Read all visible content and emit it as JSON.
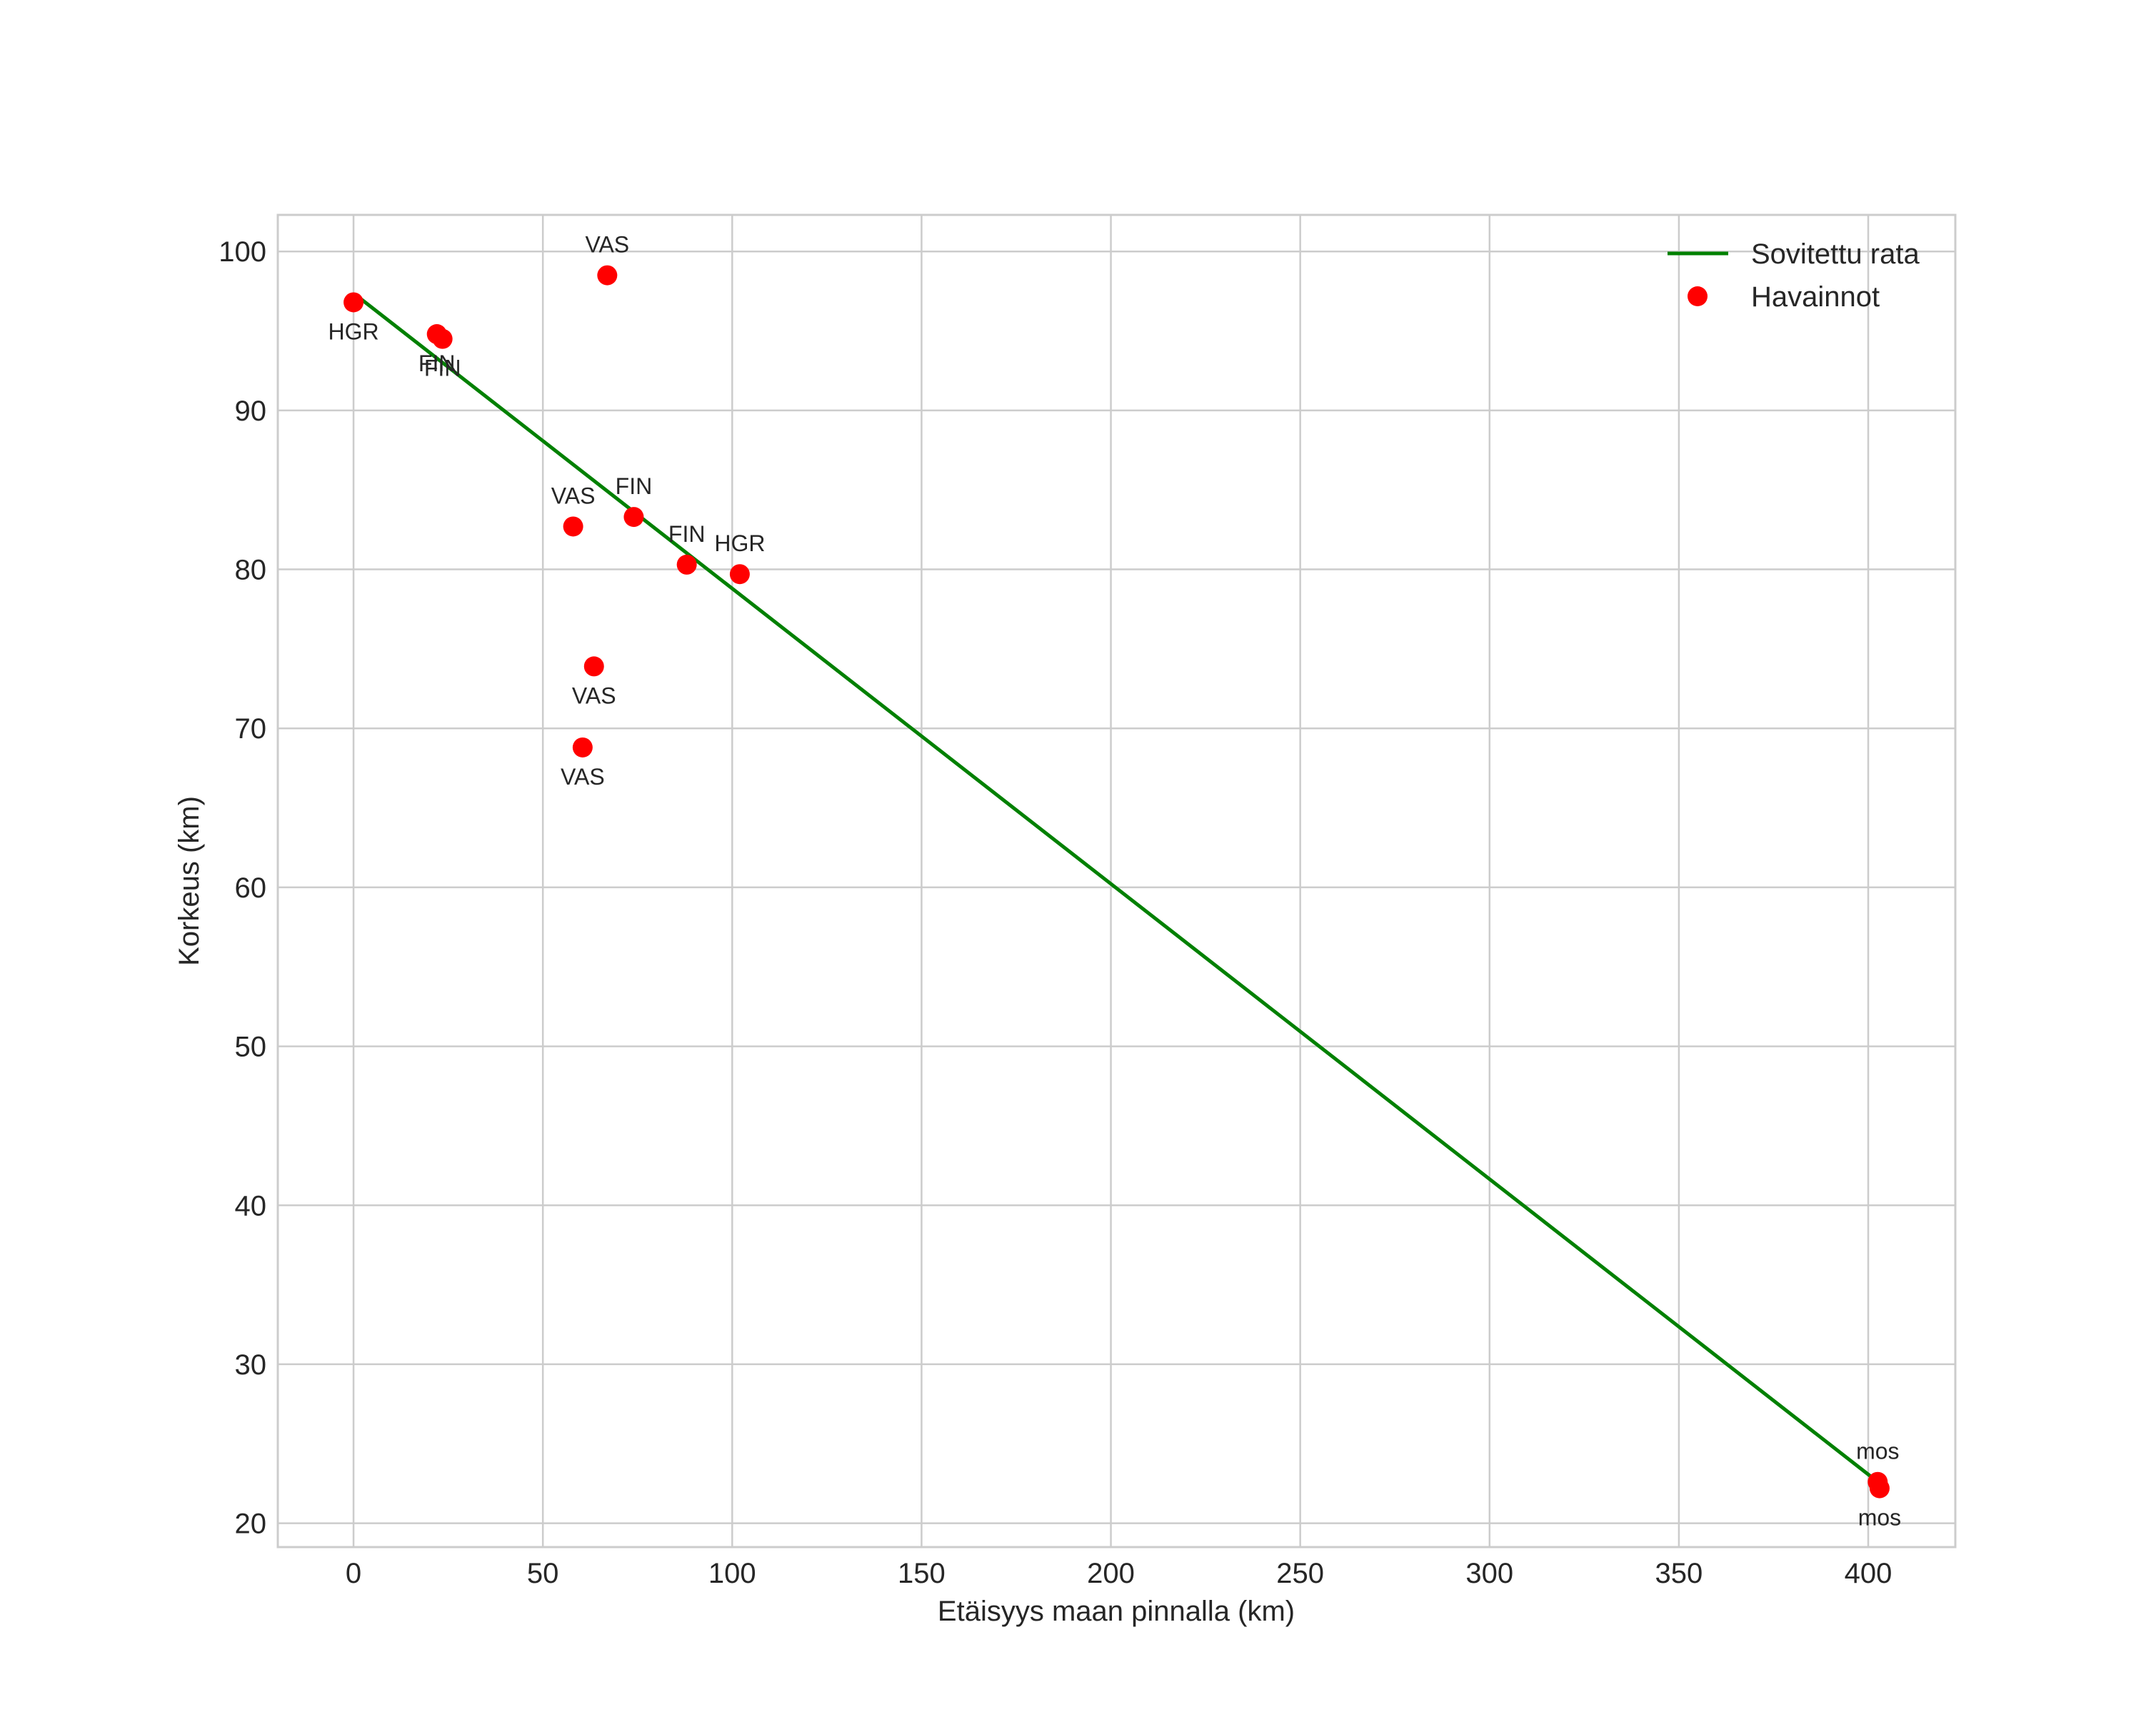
{
  "chart_data": {
    "type": "scatter",
    "title": "",
    "xlabel": "Etäisyys maan pinnalla (km)",
    "ylabel": "Korkeus (km)",
    "xlim": [
      -20,
      423
    ],
    "ylim": [
      18.5,
      102.3
    ],
    "xticks": [
      0,
      50,
      100,
      150,
      200,
      250,
      300,
      350,
      400
    ],
    "yticks": [
      20,
      30,
      40,
      50,
      60,
      70,
      80,
      90,
      100
    ],
    "grid": true,
    "legend": {
      "placement": "top-right",
      "entries": [
        {
          "label": "Sovitettu rata",
          "kind": "line",
          "color": "#008000"
        },
        {
          "label": "Havainnot",
          "kind": "marker",
          "color": "#ff0000"
        }
      ]
    },
    "series": [
      {
        "name": "Sovitettu rata",
        "kind": "line",
        "color": "#008000",
        "x": [
          2,
          402
        ],
        "y": [
          97.0,
          22.7
        ]
      },
      {
        "name": "Havainnot",
        "kind": "scatter",
        "color": "#ff0000",
        "points": [
          {
            "x": 0,
            "y": 96.8,
            "label": "HGR",
            "pos": "below"
          },
          {
            "x": 22,
            "y": 94.8,
            "label": "FIN",
            "pos": "below"
          },
          {
            "x": 23.5,
            "y": 94.5,
            "label": "FIN",
            "pos": "below"
          },
          {
            "x": 67,
            "y": 98.5,
            "label": "VAS",
            "pos": "above"
          },
          {
            "x": 58,
            "y": 82.7,
            "label": "VAS",
            "pos": "above"
          },
          {
            "x": 74,
            "y": 83.3,
            "label": "FIN",
            "pos": "above"
          },
          {
            "x": 88,
            "y": 80.3,
            "label": "FIN",
            "pos": "above"
          },
          {
            "x": 102,
            "y": 79.7,
            "label": "HGR",
            "pos": "above"
          },
          {
            "x": 63.5,
            "y": 73.9,
            "label": "VAS",
            "pos": "below"
          },
          {
            "x": 60.5,
            "y": 68.8,
            "label": "VAS",
            "pos": "below"
          },
          {
            "x": 402.5,
            "y": 22.6,
            "label": "mos",
            "pos": "above"
          },
          {
            "x": 403,
            "y": 22.2,
            "label": "mos",
            "pos": "below"
          }
        ]
      }
    ]
  }
}
